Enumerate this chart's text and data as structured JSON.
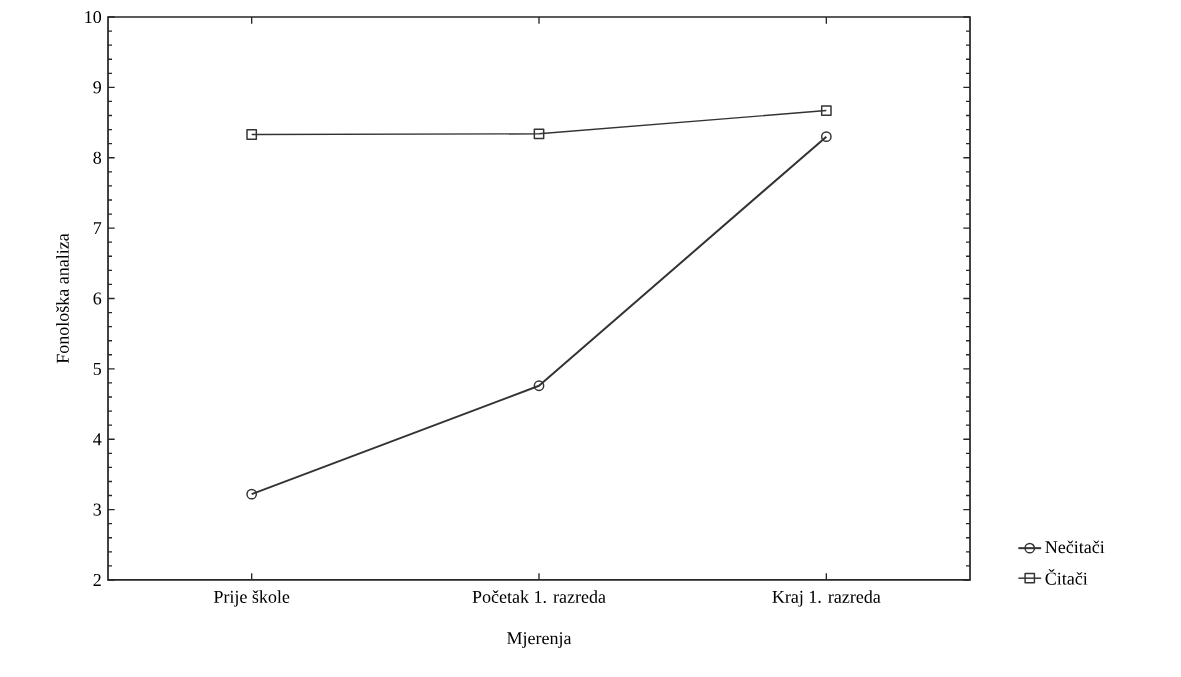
{
  "chart_data": {
    "type": "line",
    "xlabel": "Mjerenja",
    "ylabel": "Fonološka analiza",
    "categories": [
      "Prije škole",
      "Početak 1. razreda",
      "Kraj 1. razreda"
    ],
    "series": [
      {
        "name": "Nečitači",
        "color": "#333333",
        "marker": "circle",
        "values": [
          3.22,
          4.76,
          8.3
        ]
      },
      {
        "name": "Čitači",
        "color": "#333333",
        "marker": "square",
        "values": [
          8.33,
          8.34,
          8.67
        ]
      }
    ],
    "ylim": [
      2,
      10
    ],
    "yticks": [
      2,
      3,
      4,
      5,
      6,
      7,
      8,
      9,
      10
    ],
    "grid": false,
    "legend": "bottom right"
  }
}
